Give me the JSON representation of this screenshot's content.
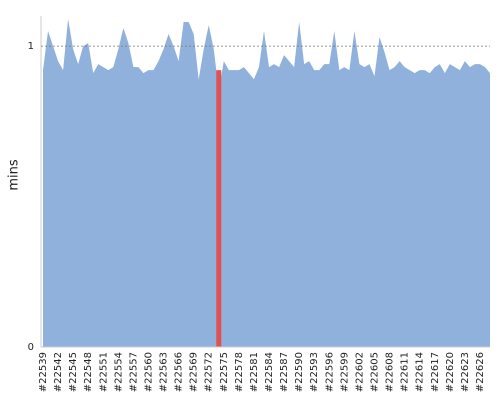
{
  "chart_data": {
    "type": "area",
    "y_label": "mins",
    "categories": [
      "#22539",
      null,
      null,
      "#22542",
      null,
      null,
      "#22545",
      null,
      null,
      "#22548",
      null,
      null,
      "#22551",
      null,
      null,
      "#22554",
      null,
      null,
      "#22557",
      null,
      null,
      "#22560",
      null,
      null,
      "#22563",
      null,
      null,
      "#22566",
      null,
      null,
      "#22569",
      null,
      null,
      "#22572",
      null,
      null,
      "#22575",
      null,
      null,
      "#22578",
      null,
      null,
      "#22581",
      null,
      null,
      "#22584",
      null,
      null,
      "#22587",
      null,
      null,
      "#22590",
      null,
      null,
      "#22593",
      null,
      null,
      "#22596",
      null,
      null,
      "#22599",
      null,
      null,
      "#22602",
      null,
      null,
      "#22605",
      null,
      null,
      "#22608",
      null,
      null,
      "#22611",
      null,
      null,
      "#22614",
      null,
      null,
      "#22617",
      null,
      null,
      "#22620",
      null,
      null,
      "#22623",
      null,
      null,
      "#22626",
      null,
      null
    ],
    "series": [
      {
        "type": "area",
        "color": "#8fb1db",
        "values": [
          0.92,
          1.05,
          1.0,
          0.95,
          0.92,
          1.09,
          0.99,
          0.94,
          1.0,
          1.01,
          0.91,
          0.94,
          0.93,
          0.92,
          0.93,
          0.99,
          1.06,
          1.01,
          0.93,
          0.93,
          0.91,
          0.92,
          0.92,
          0.95,
          0.99,
          1.04,
          1.0,
          0.95,
          1.08,
          1.08,
          1.04,
          0.89,
          0.99,
          1.07,
          0.99,
          0.85,
          0.95,
          0.92,
          0.92,
          0.92,
          0.93,
          0.91,
          0.89,
          0.93,
          1.05,
          0.93,
          0.94,
          0.93,
          0.97,
          0.95,
          0.93,
          1.08,
          0.94,
          0.95,
          0.92,
          0.92,
          0.94,
          0.94,
          1.05,
          0.92,
          0.93,
          0.92,
          1.05,
          0.94,
          0.93,
          0.94,
          0.9,
          1.03,
          0.98,
          0.92,
          0.93,
          0.95,
          0.93,
          0.92,
          0.91,
          0.92,
          0.92,
          0.91,
          0.93,
          0.94,
          0.91,
          0.94,
          0.93,
          0.92,
          0.95,
          0.93,
          0.94,
          0.94,
          0.93,
          0.91
        ]
      },
      {
        "type": "bar",
        "color": "#e05252",
        "values": [
          null,
          null,
          null,
          null,
          null,
          null,
          null,
          null,
          null,
          null,
          null,
          null,
          null,
          null,
          null,
          null,
          null,
          null,
          null,
          null,
          null,
          null,
          null,
          null,
          null,
          null,
          null,
          null,
          null,
          null,
          null,
          null,
          null,
          null,
          null,
          0.92,
          null,
          null,
          null,
          null,
          null,
          null,
          null,
          null,
          null,
          null,
          null,
          null,
          null,
          null,
          null,
          null,
          null,
          null,
          null,
          null,
          null,
          null,
          null,
          null,
          null,
          null,
          null,
          null,
          null,
          null,
          null,
          null,
          null,
          null,
          null,
          null,
          null,
          null,
          null,
          null,
          null,
          null,
          null,
          null,
          null,
          null,
          null,
          null,
          null,
          null,
          null,
          null,
          null,
          null
        ]
      }
    ],
    "ylim": [
      0,
      1.1
    ],
    "yticks": [
      0,
      1
    ],
    "grid": true
  }
}
